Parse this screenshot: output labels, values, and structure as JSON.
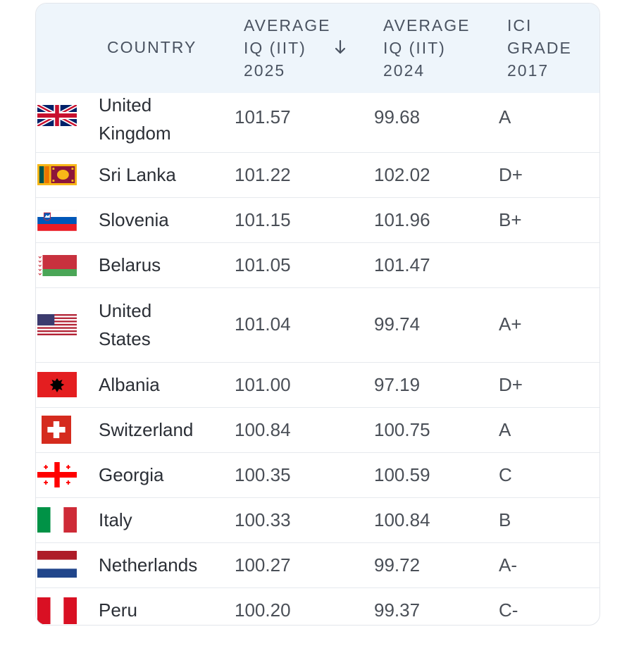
{
  "table": {
    "headers": {
      "country": "COUNTRY",
      "iq2025": [
        "AVERAGE",
        "IQ (IIT)",
        "2025"
      ],
      "iq2024": [
        "AVERAGE",
        "IQ (IIT)",
        "2024"
      ],
      "grade": [
        "ICI",
        "GRADE",
        "2017"
      ],
      "sort_icon": "arrow-down-icon"
    },
    "rows": [
      {
        "country_lines": [
          "United",
          "Kingdom"
        ],
        "iq2025": "101.57",
        "iq2024": "99.68",
        "grade": "A",
        "flag": "uk-flag-icon"
      },
      {
        "country_lines": [
          "Sri Lanka"
        ],
        "iq2025": "101.22",
        "iq2024": "102.02",
        "grade": "D+",
        "flag": "sri-lanka-flag-icon"
      },
      {
        "country_lines": [
          "Slovenia"
        ],
        "iq2025": "101.15",
        "iq2024": "101.96",
        "grade": "B+",
        "flag": "slovenia-flag-icon"
      },
      {
        "country_lines": [
          "Belarus"
        ],
        "iq2025": "101.05",
        "iq2024": "101.47",
        "grade": "",
        "flag": "belarus-flag-icon"
      },
      {
        "country_lines": [
          "United",
          "States"
        ],
        "iq2025": "101.04",
        "iq2024": "99.74",
        "grade": "A+",
        "flag": "usa-flag-icon"
      },
      {
        "country_lines": [
          "Albania"
        ],
        "iq2025": "101.00",
        "iq2024": "97.19",
        "grade": "D+",
        "flag": "albania-flag-icon"
      },
      {
        "country_lines": [
          "Switzerland"
        ],
        "iq2025": "100.84",
        "iq2024": "100.75",
        "grade": "A",
        "flag": "switzerland-flag-icon"
      },
      {
        "country_lines": [
          "Georgia"
        ],
        "iq2025": "100.35",
        "iq2024": "100.59",
        "grade": "C",
        "flag": "georgia-flag-icon"
      },
      {
        "country_lines": [
          "Italy"
        ],
        "iq2025": "100.33",
        "iq2024": "100.84",
        "grade": "B",
        "flag": "italy-flag-icon"
      },
      {
        "country_lines": [
          "Netherlands"
        ],
        "iq2025": "100.27",
        "iq2024": "99.72",
        "grade": "A-",
        "flag": "netherlands-flag-icon"
      },
      {
        "country_lines": [
          "Peru"
        ],
        "iq2025": "100.20",
        "iq2024": "99.37",
        "grade": "C-",
        "flag": "peru-flag-icon"
      }
    ]
  }
}
